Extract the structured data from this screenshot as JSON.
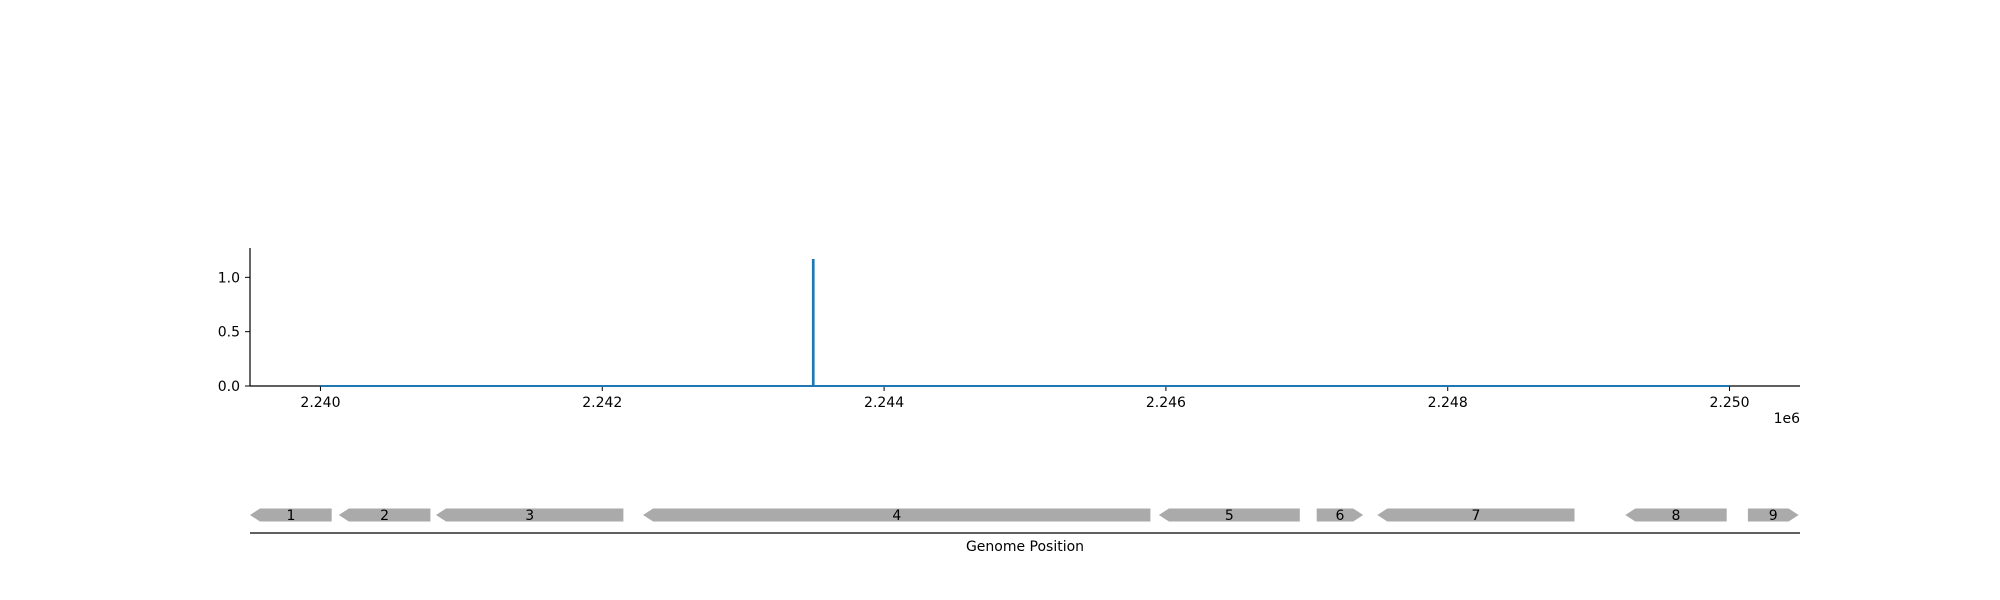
{
  "chart_data": {
    "type": "line",
    "axis_offset_label": "1e6",
    "x_label": "Genome Position",
    "xlim": [
      2239500,
      2250500
    ],
    "ylim": [
      0,
      1.27
    ],
    "x_ticks": [
      {
        "value": 2240000,
        "label": "2.240"
      },
      {
        "value": 2242000,
        "label": "2.242"
      },
      {
        "value": 2244000,
        "label": "2.244"
      },
      {
        "value": 2246000,
        "label": "2.246"
      },
      {
        "value": 2248000,
        "label": "2.248"
      },
      {
        "value": 2250000,
        "label": "2.250"
      }
    ],
    "y_ticks": [
      {
        "value": 0.0,
        "label": "0.0"
      },
      {
        "value": 0.5,
        "label": "0.5"
      },
      {
        "value": 1.0,
        "label": "1.0"
      }
    ],
    "series": [
      {
        "color": "#1f77b4",
        "points": [
          [
            2240000,
            0.0
          ],
          [
            2243495,
            0.0
          ],
          [
            2243495,
            1.16
          ],
          [
            2243500,
            1.16
          ],
          [
            2243500,
            0.0
          ],
          [
            2250000,
            0.0
          ]
        ]
      }
    ],
    "genes": [
      {
        "label": "1",
        "start": 2239500,
        "end": 2240080,
        "strand": "-"
      },
      {
        "label": "2",
        "start": 2240130,
        "end": 2240780,
        "strand": "-"
      },
      {
        "label": "3",
        "start": 2240820,
        "end": 2242150,
        "strand": "-"
      },
      {
        "label": "4",
        "start": 2242290,
        "end": 2245890,
        "strand": "-"
      },
      {
        "label": "5",
        "start": 2245950,
        "end": 2246950,
        "strand": "-"
      },
      {
        "label": "6",
        "start": 2247070,
        "end": 2247400,
        "strand": "+"
      },
      {
        "label": "7",
        "start": 2247500,
        "end": 2248900,
        "strand": "-"
      },
      {
        "label": "8",
        "start": 2249260,
        "end": 2249980,
        "strand": "-"
      },
      {
        "label": "9",
        "start": 2250130,
        "end": 2250490,
        "strand": "+"
      }
    ],
    "gene_color": "#aaaaaa",
    "grid": false,
    "legend": "none"
  }
}
